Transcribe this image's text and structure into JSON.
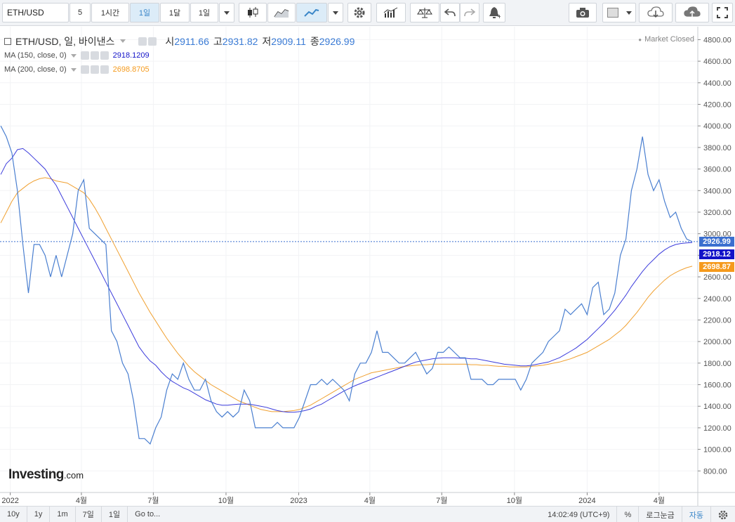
{
  "toolbar": {
    "symbol": "ETH/USD",
    "intervals": [
      "5",
      "1시간",
      "1일",
      "1달",
      "1일"
    ],
    "active_interval_index": 2
  },
  "legend": {
    "title": "ETH/USD, 일, 바이낸스",
    "open_label": "시",
    "open": "2911.66",
    "high_label": "고",
    "high": "2931.82",
    "low_label": "저",
    "low": "2909.11",
    "close_label": "종",
    "close": "2926.99",
    "ma150_label": "MA (150, close, 0)",
    "ma150_value": "2918.1209",
    "ma200_label": "MA (200, close, 0)",
    "ma200_value": "2698.8705"
  },
  "market_status": "Market Closed",
  "logo": {
    "main": "Investing",
    "suffix": ".com"
  },
  "badges": {
    "last": "2926.99",
    "ma150": "2918.12",
    "ma200": "2698.87"
  },
  "colors": {
    "price": "#4a7fd0",
    "ma150": "#3c3cdc",
    "ma200": "#f0a030",
    "last_badge": "#3b6fcf",
    "ma150_badge": "#1212c8",
    "ma200_badge": "#f59a1c"
  },
  "bottombar": {
    "ranges": [
      "10y",
      "1y",
      "1m",
      "7일",
      "1일"
    ],
    "goto": "Go to...",
    "time": "14:02:49 (UTC+9)",
    "percent": "%",
    "log": "로그눈금",
    "auto": "자동"
  },
  "icons": [
    "caret-down-icon",
    "candlestick-icon",
    "area-chart-icon",
    "line-chart-icon",
    "gear-icon",
    "indicator-icon",
    "scale-icon",
    "undo-icon",
    "redo-icon",
    "alert-icon",
    "camera-icon",
    "drawing-box-icon",
    "cloud-download-icon",
    "cloud-upload-icon",
    "fullscreen-icon"
  ],
  "chart_data": {
    "type": "line",
    "y_ticks": [
      800,
      1000,
      1200,
      1400,
      1600,
      1800,
      2000,
      2200,
      2400,
      2600,
      2800,
      3000,
      3200,
      3400,
      3600,
      3800,
      4000,
      4200,
      4400,
      4600,
      4800
    ],
    "ylim": [
      600,
      4920
    ],
    "x_ticks": [
      "2022",
      "4월",
      "7월",
      "10월",
      "2023",
      "4월",
      "7월",
      "10월",
      "2024",
      "4월"
    ],
    "x_tick_dates": [
      "2022-01-01",
      "2022-04-01",
      "2022-07-01",
      "2022-10-01",
      "2023-01-01",
      "2023-04-01",
      "2023-07-01",
      "2023-10-01",
      "2024-01-01",
      "2024-04-01"
    ],
    "xlim": [
      "2021-12-19",
      "2024-05-20"
    ],
    "last_price_line": 2926.99,
    "series": [
      {
        "x": [
          "2021-12-20",
          "2021-12-27",
          "2022-01-03",
          "2022-01-10",
          "2022-01-17",
          "2022-01-24",
          "2022-01-31",
          "2022-02-07",
          "2022-02-14",
          "2022-02-21",
          "2022-02-28",
          "2022-03-07",
          "2022-03-14",
          "2022-03-21",
          "2022-03-28",
          "2022-04-04",
          "2022-04-11",
          "2022-04-18",
          "2022-04-25",
          "2022-05-02",
          "2022-05-09",
          "2022-05-16",
          "2022-05-23",
          "2022-05-30",
          "2022-06-06",
          "2022-06-13",
          "2022-06-20",
          "2022-06-27",
          "2022-07-04",
          "2022-07-11",
          "2022-07-18",
          "2022-07-25",
          "2022-08-01",
          "2022-08-08",
          "2022-08-15",
          "2022-08-22",
          "2022-08-29",
          "2022-09-05",
          "2022-09-12",
          "2022-09-19",
          "2022-09-26",
          "2022-10-03",
          "2022-10-10",
          "2022-10-17",
          "2022-10-24",
          "2022-10-31",
          "2022-11-07",
          "2022-11-14",
          "2022-11-21",
          "2022-11-28",
          "2022-12-05",
          "2022-12-12",
          "2022-12-19",
          "2022-12-26",
          "2023-01-02",
          "2023-01-09",
          "2023-01-16",
          "2023-01-23",
          "2023-01-30",
          "2023-02-06",
          "2023-02-13",
          "2023-02-20",
          "2023-02-27",
          "2023-03-06",
          "2023-03-13",
          "2023-03-20",
          "2023-03-27",
          "2023-04-03",
          "2023-04-10",
          "2023-04-17",
          "2023-04-24",
          "2023-05-01",
          "2023-05-08",
          "2023-05-15",
          "2023-05-22",
          "2023-05-29",
          "2023-06-05",
          "2023-06-12",
          "2023-06-19",
          "2023-06-26",
          "2023-07-03",
          "2023-07-10",
          "2023-07-17",
          "2023-07-24",
          "2023-07-31",
          "2023-08-07",
          "2023-08-14",
          "2023-08-21",
          "2023-08-28",
          "2023-09-04",
          "2023-09-11",
          "2023-09-18",
          "2023-09-25",
          "2023-10-02",
          "2023-10-09",
          "2023-10-16",
          "2023-10-23",
          "2023-10-30",
          "2023-11-06",
          "2023-11-13",
          "2023-11-20",
          "2023-11-27",
          "2023-12-04",
          "2023-12-11",
          "2023-12-18",
          "2023-12-25",
          "2024-01-01",
          "2024-01-08",
          "2024-01-15",
          "2024-01-22",
          "2024-01-29",
          "2024-02-05",
          "2024-02-12",
          "2024-02-19",
          "2024-02-26",
          "2024-03-04",
          "2024-03-11",
          "2024-03-18",
          "2024-03-25",
          "2024-04-01",
          "2024-04-08",
          "2024-04-15",
          "2024-04-22",
          "2024-04-29",
          "2024-05-06",
          "2024-05-13"
        ],
        "price": [
          4000,
          3900,
          3750,
          3400,
          2900,
          2450,
          2900,
          2900,
          2800,
          2600,
          2800,
          2600,
          2800,
          3000,
          3400,
          3500,
          3050,
          3000,
          2950,
          2900,
          2100,
          2000,
          1800,
          1700,
          1450,
          1100,
          1100,
          1050,
          1200,
          1300,
          1550,
          1700,
          1650,
          1800,
          1650,
          1550,
          1550,
          1650,
          1450,
          1350,
          1300,
          1350,
          1300,
          1350,
          1550,
          1450,
          1200,
          1200,
          1200,
          1200,
          1250,
          1200,
          1200,
          1200,
          1300,
          1450,
          1600,
          1600,
          1650,
          1600,
          1650,
          1600,
          1550,
          1450,
          1700,
          1800,
          1800,
          1900,
          2100,
          1900,
          1900,
          1850,
          1800,
          1800,
          1850,
          1900,
          1800,
          1700,
          1750,
          1900,
          1900,
          1950,
          1900,
          1850,
          1850,
          1650,
          1650,
          1650,
          1600,
          1600,
          1650,
          1650,
          1650,
          1650,
          1550,
          1650,
          1800,
          1850,
          1900,
          2000,
          2050,
          2100,
          2300,
          2250,
          2300,
          2350,
          2250,
          2500,
          2550,
          2250,
          2300,
          2450,
          2800,
          2950,
          3400,
          3600,
          3900,
          3550,
          3400,
          3500,
          3300,
          3150,
          3200,
          3050,
          2950,
          2927
        ],
        "ma150": [
          3550,
          3650,
          3700,
          3780,
          3790,
          3750,
          3700,
          3650,
          3600,
          3520,
          3450,
          3350,
          3250,
          3150,
          3050,
          2950,
          2850,
          2750,
          2650,
          2550,
          2450,
          2350,
          2250,
          2150,
          2050,
          1950,
          1880,
          1820,
          1780,
          1720,
          1670,
          1630,
          1600,
          1570,
          1550,
          1520,
          1490,
          1460,
          1440,
          1420,
          1410,
          1410,
          1415,
          1420,
          1420,
          1420,
          1410,
          1400,
          1390,
          1375,
          1360,
          1350,
          1345,
          1345,
          1350,
          1360,
          1375,
          1400,
          1420,
          1450,
          1480,
          1510,
          1540,
          1565,
          1590,
          1610,
          1630,
          1650,
          1670,
          1690,
          1710,
          1730,
          1750,
          1770,
          1790,
          1810,
          1820,
          1830,
          1840,
          1845,
          1850,
          1850,
          1850,
          1845,
          1845,
          1840,
          1840,
          1830,
          1820,
          1810,
          1800,
          1790,
          1785,
          1780,
          1775,
          1775,
          1780,
          1790,
          1800,
          1810,
          1830,
          1850,
          1880,
          1910,
          1940,
          1980,
          2020,
          2070,
          2120,
          2170,
          2230,
          2290,
          2360,
          2430,
          2510,
          2580,
          2650,
          2710,
          2760,
          2810,
          2850,
          2880,
          2900,
          2910,
          2915,
          2918
        ],
        "ma200": [
          3100,
          3200,
          3300,
          3380,
          3420,
          3460,
          3490,
          3510,
          3520,
          3510,
          3490,
          3480,
          3470,
          3440,
          3410,
          3380,
          3320,
          3240,
          3150,
          3050,
          2950,
          2850,
          2750,
          2650,
          2550,
          2450,
          2360,
          2270,
          2190,
          2110,
          2030,
          1960,
          1890,
          1830,
          1770,
          1720,
          1680,
          1640,
          1600,
          1570,
          1540,
          1510,
          1480,
          1450,
          1430,
          1410,
          1390,
          1370,
          1360,
          1350,
          1350,
          1350,
          1355,
          1360,
          1370,
          1390,
          1410,
          1440,
          1470,
          1500,
          1530,
          1560,
          1590,
          1620,
          1650,
          1670,
          1690,
          1710,
          1720,
          1730,
          1740,
          1750,
          1760,
          1770,
          1775,
          1780,
          1785,
          1785,
          1790,
          1790,
          1790,
          1790,
          1790,
          1790,
          1790,
          1785,
          1785,
          1780,
          1780,
          1775,
          1770,
          1770,
          1765,
          1765,
          1765,
          1765,
          1770,
          1775,
          1780,
          1790,
          1800,
          1810,
          1825,
          1840,
          1860,
          1880,
          1900,
          1930,
          1960,
          1990,
          2020,
          2060,
          2100,
          2150,
          2210,
          2270,
          2340,
          2410,
          2470,
          2520,
          2570,
          2610,
          2640,
          2665,
          2685,
          2699
        ]
      }
    ]
  }
}
